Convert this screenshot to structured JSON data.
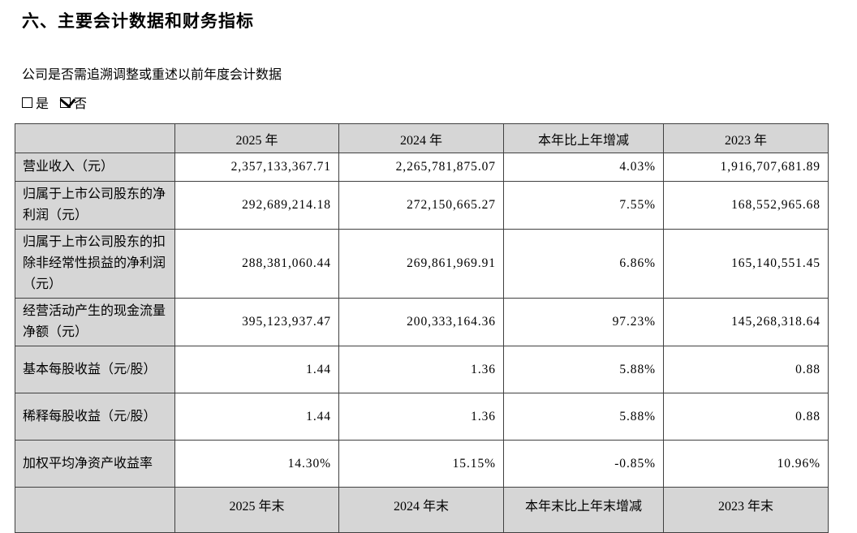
{
  "section": {
    "title": "六、主要会计数据和财务指标",
    "question": "公司是否需追溯调整或重述以前年度会计数据",
    "options": {
      "yes": "是",
      "no": "否",
      "checked": "no"
    }
  },
  "table": {
    "headers": [
      "",
      "2025 年",
      "2024 年",
      "本年比上年增减",
      "2023 年"
    ],
    "rows": [
      {
        "label": "营业收入（元）",
        "values": [
          "2,357,133,367.71",
          "2,265,781,875.07",
          "4.03%",
          "1,916,707,681.89"
        ]
      },
      {
        "label": "归属于上市公司股东的净利润（元）",
        "values": [
          "292,689,214.18",
          "272,150,665.27",
          "7.55%",
          "168,552,965.68"
        ]
      },
      {
        "label": "归属于上市公司股东的扣除非经常性损益的净利润（元）",
        "values": [
          "288,381,060.44",
          "269,861,969.91",
          "6.86%",
          "165,140,551.45"
        ]
      },
      {
        "label": "经营活动产生的现金流量净额（元）",
        "values": [
          "395,123,937.47",
          "200,333,164.36",
          "97.23%",
          "145,268,318.64"
        ]
      },
      {
        "label": "基本每股收益（元/股）",
        "values": [
          "1.44",
          "1.36",
          "5.88%",
          "0.88"
        ]
      },
      {
        "label": "稀释每股收益（元/股）",
        "values": [
          "1.44",
          "1.36",
          "5.88%",
          "0.88"
        ]
      },
      {
        "label": "加权平均净资产收益率",
        "values": [
          "14.30%",
          "15.15%",
          "-0.85%",
          "10.96%"
        ]
      }
    ],
    "partial_header": [
      "",
      "2025 年末",
      "2024 年末",
      "本年末比上年末增减",
      "2023 年末"
    ]
  }
}
